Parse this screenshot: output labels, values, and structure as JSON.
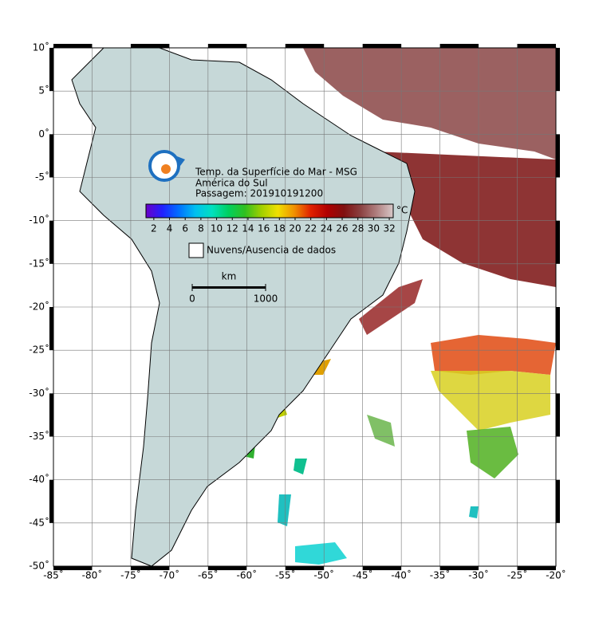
{
  "map": {
    "title_lines": [
      "Temp. da Superfície do Mar - MSG",
      "América do Sul",
      "Passagem: 201910191200"
    ],
    "lon_range": [
      -85,
      -20
    ],
    "lat_range": [
      10,
      -50
    ],
    "lon_ticks": [
      {
        "value": -85,
        "label": "-85˚"
      },
      {
        "value": -80,
        "label": "-80˚"
      },
      {
        "value": -75,
        "label": "-75˚"
      },
      {
        "value": -70,
        "label": "-70˚"
      },
      {
        "value": -65,
        "label": "-65˚"
      },
      {
        "value": -60,
        "label": "-60˚"
      },
      {
        "value": -55,
        "label": "-55˚"
      },
      {
        "value": -50,
        "label": "-50˚"
      },
      {
        "value": -45,
        "label": "-45˚"
      },
      {
        "value": -40,
        "label": "-40˚"
      },
      {
        "value": -35,
        "label": "-35˚"
      },
      {
        "value": -30,
        "label": "-30˚"
      },
      {
        "value": -25,
        "label": "-25˚"
      },
      {
        "value": -20,
        "label": "-20˚"
      }
    ],
    "lat_ticks": [
      {
        "value": 10,
        "label": "10˚"
      },
      {
        "value": 5,
        "label": "5˚"
      },
      {
        "value": 0,
        "label": "0˚"
      },
      {
        "value": -5,
        "label": "-5˚"
      },
      {
        "value": -10,
        "label": "-10˚"
      },
      {
        "value": -15,
        "label": "-15˚"
      },
      {
        "value": -20,
        "label": "-20˚"
      },
      {
        "value": -25,
        "label": "-25˚"
      },
      {
        "value": -30,
        "label": "-30˚"
      },
      {
        "value": -35,
        "label": "-35˚"
      },
      {
        "value": -40,
        "label": "-40˚"
      },
      {
        "value": -45,
        "label": "-45˚"
      },
      {
        "value": -50,
        "label": "-50˚"
      }
    ],
    "colorbar": {
      "unit": "°C",
      "limits": [
        1,
        32.5
      ],
      "ticks": [
        2,
        4,
        6,
        8,
        10,
        12,
        14,
        16,
        18,
        20,
        22,
        24,
        26,
        28,
        30,
        32
      ],
      "colors": [
        "#6a00c8",
        "#2020ff",
        "#0070ff",
        "#00c0f0",
        "#00e0c0",
        "#00d060",
        "#30c020",
        "#a0d000",
        "#f0e000",
        "#f09000",
        "#e02000",
        "#b00000",
        "#801010",
        "#8a4040",
        "#b08080",
        "#d8c8c8"
      ]
    },
    "legend": "Nuvens/Ausencia de dados",
    "scale": {
      "unit": "km",
      "ticks": [
        0,
        1000
      ]
    }
  }
}
